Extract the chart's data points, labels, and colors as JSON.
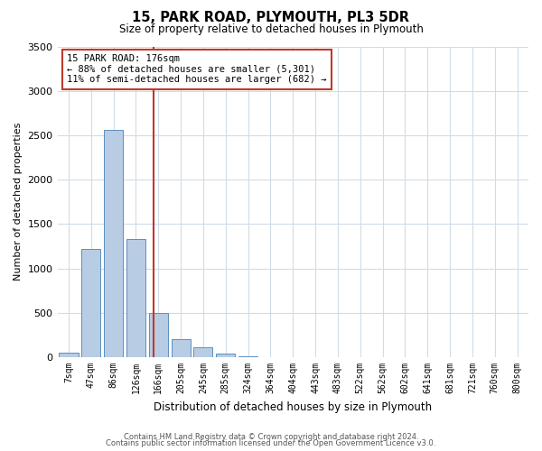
{
  "title": "15, PARK ROAD, PLYMOUTH, PL3 5DR",
  "subtitle": "Size of property relative to detached houses in Plymouth",
  "xlabel": "Distribution of detached houses by size in Plymouth",
  "ylabel": "Number of detached properties",
  "bar_labels": [
    "7sqm",
    "47sqm",
    "86sqm",
    "126sqm",
    "166sqm",
    "205sqm",
    "245sqm",
    "285sqm",
    "324sqm",
    "364sqm",
    "404sqm",
    "443sqm",
    "483sqm",
    "522sqm",
    "562sqm",
    "602sqm",
    "641sqm",
    "681sqm",
    "721sqm",
    "760sqm",
    "800sqm"
  ],
  "bar_values": [
    50,
    1220,
    2560,
    1330,
    500,
    200,
    110,
    40,
    10,
    5,
    2,
    1,
    0,
    0,
    0,
    0,
    0,
    0,
    0,
    0,
    0
  ],
  "bar_color": "#b8cce4",
  "bar_edge_color": "#5a8fc2",
  "vline_color": "#c0392b",
  "annotation_title": "15 PARK ROAD: 176sqm",
  "annotation_line1": "← 88% of detached houses are smaller (5,301)",
  "annotation_line2": "11% of semi-detached houses are larger (682) →",
  "annotation_box_color": "#c0392b",
  "ylim": [
    0,
    3500
  ],
  "yticks": [
    0,
    500,
    1000,
    1500,
    2000,
    2500,
    3000,
    3500
  ],
  "footnote1": "Contains HM Land Registry data © Crown copyright and database right 2024.",
  "footnote2": "Contains public sector information licensed under the Open Government Licence v3.0.",
  "background_color": "#ffffff",
  "grid_color": "#d0dce8"
}
